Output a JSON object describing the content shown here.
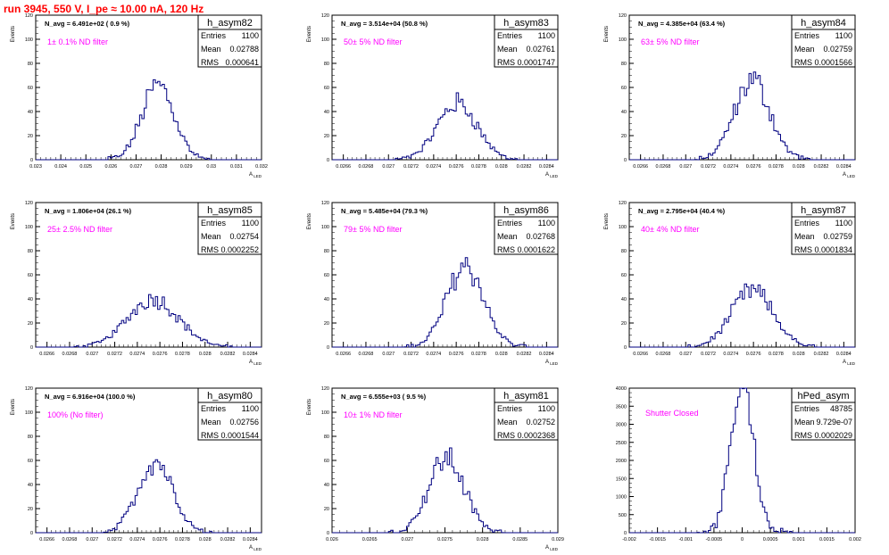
{
  "page": {
    "title": "run 3945,   550 V, I_pe ≈ 10.00 nA, 120 Hz"
  },
  "colors": {
    "title": "#ff0000",
    "annotation": "#ff00ff",
    "histogram": "#000080"
  },
  "chart_data": [
    {
      "type": "histogram",
      "name": "h_asym82",
      "stats": {
        "entries_label": "Entries",
        "entries": "1100",
        "mean_label": "Mean",
        "mean": "0.02788",
        "rms_label": "RMS",
        "rms": "0.000641"
      },
      "navg_text": "N_avg = 6.491e+02 ( 0.9 %)",
      "filter_text": "1± 0.1% ND filter",
      "ylabel": "Events",
      "xlabel": "A_LED",
      "xlim": [
        0.023,
        0.032
      ],
      "ylim": [
        0,
        120
      ],
      "xticks": [
        "0.023",
        "0.024",
        "0.025",
        "0.026",
        "0.027",
        "0.028",
        "0.029",
        "0.03",
        "0.031",
        "0.032"
      ],
      "yticks": [
        "0",
        "20",
        "40",
        "60",
        "80",
        "100",
        "120"
      ],
      "peak_x": 0.02788,
      "peak_y": 62,
      "sigma": 0.00064
    },
    {
      "type": "histogram",
      "name": "h_asym83",
      "stats": {
        "entries_label": "Entries",
        "entries": "1100",
        "mean_label": "Mean",
        "mean": "0.02761",
        "rms_label": "RMS",
        "rms": "0.0001747"
      },
      "navg_text": "N_avg = 3.514e+04 (50.8 %)",
      "filter_text": "50± 5% ND filter",
      "ylabel": "Events",
      "xlabel": "A_LED",
      "xlim": [
        0.0265,
        0.0285
      ],
      "ylim": [
        0,
        120
      ],
      "xticks": [
        "0.0266",
        "0.0268",
        "0.027",
        "0.0272",
        "0.0274",
        "0.0276",
        "0.0278",
        "0.028",
        "0.0282",
        "0.0284"
      ],
      "yticks": [
        "0",
        "20",
        "40",
        "60",
        "80",
        "100",
        "120"
      ],
      "peak_x": 0.02761,
      "peak_y": 47,
      "sigma": 0.000175
    },
    {
      "type": "histogram",
      "name": "h_asym84",
      "stats": {
        "entries_label": "Entries",
        "entries": "1100",
        "mean_label": "Mean",
        "mean": "0.02759",
        "rms_label": "RMS",
        "rms": "0.0001566"
      },
      "navg_text": "N_avg = 4.385e+04 (63.4 %)",
      "filter_text": "63± 5% ND filter",
      "ylabel": "Events",
      "xlabel": "A_LED",
      "xlim": [
        0.0265,
        0.0285
      ],
      "ylim": [
        0,
        120
      ],
      "xticks": [
        "0.0266",
        "0.0268",
        "0.027",
        "0.0272",
        "0.0274",
        "0.0276",
        "0.0278",
        "0.028",
        "0.0282",
        "0.0284"
      ],
      "yticks": [
        "0",
        "20",
        "40",
        "60",
        "80",
        "100",
        "120"
      ],
      "peak_x": 0.02759,
      "peak_y": 66,
      "sigma": 0.000157
    },
    {
      "type": "histogram",
      "name": "h_asym85",
      "stats": {
        "entries_label": "Entries",
        "entries": "1100",
        "mean_label": "Mean",
        "mean": "0.02754",
        "rms_label": "RMS",
        "rms": "0.0002252"
      },
      "navg_text": "N_avg = 1.806e+04 (26.1 %)",
      "filter_text": "25± 2.5% ND filter",
      "ylabel": "Events",
      "xlabel": "A_LED",
      "xlim": [
        0.0265,
        0.0285
      ],
      "ylim": [
        0,
        120
      ],
      "xticks": [
        "0.0266",
        "0.0268",
        "0.027",
        "0.0272",
        "0.0274",
        "0.0276",
        "0.0278",
        "0.028",
        "0.0282",
        "0.0284"
      ],
      "yticks": [
        "0",
        "20",
        "40",
        "60",
        "80",
        "100",
        "120"
      ],
      "peak_x": 0.02754,
      "peak_y": 40,
      "sigma": 0.000225
    },
    {
      "type": "histogram",
      "name": "h_asym86",
      "stats": {
        "entries_label": "Entries",
        "entries": "1100",
        "mean_label": "Mean",
        "mean": "0.02768",
        "rms_label": "RMS",
        "rms": "0.0001622"
      },
      "navg_text": "N_avg = 5.485e+04 (79.3 %)",
      "filter_text": "79± 5% ND filter",
      "ylabel": "Events",
      "xlabel": "A_LED",
      "xlim": [
        0.0265,
        0.0285
      ],
      "ylim": [
        0,
        120
      ],
      "xticks": [
        "0.0266",
        "0.0268",
        "0.027",
        "0.0272",
        "0.0274",
        "0.0276",
        "0.0278",
        "0.028",
        "0.0282",
        "0.0284"
      ],
      "yticks": [
        "0",
        "20",
        "40",
        "60",
        "80",
        "100",
        "120"
      ],
      "peak_x": 0.02768,
      "peak_y": 68,
      "sigma": 0.000162
    },
    {
      "type": "histogram",
      "name": "h_asym87",
      "stats": {
        "entries_label": "Entries",
        "entries": "1100",
        "mean_label": "Mean",
        "mean": "0.02759",
        "rms_label": "RMS",
        "rms": "0.0001834"
      },
      "navg_text": "N_avg = 2.795e+04 (40.4 %)",
      "filter_text": "40± 4% ND filter",
      "ylabel": "Events",
      "xlabel": "A_LED",
      "xlim": [
        0.0265,
        0.0285
      ],
      "ylim": [
        0,
        120
      ],
      "xticks": [
        "0.0266",
        "0.0268",
        "0.027",
        "0.0272",
        "0.0274",
        "0.0276",
        "0.0278",
        "0.028",
        "0.0282",
        "0.0284"
      ],
      "yticks": [
        "0",
        "20",
        "40",
        "60",
        "80",
        "100",
        "120"
      ],
      "peak_x": 0.02759,
      "peak_y": 47,
      "sigma": 0.000183
    },
    {
      "type": "histogram",
      "name": "h_asym80",
      "stats": {
        "entries_label": "Entries",
        "entries": "1100",
        "mean_label": "Mean",
        "mean": "0.02756",
        "rms_label": "RMS",
        "rms": "0.0001544"
      },
      "navg_text": "N_avg = 6.916e+04 (100.0 %)",
      "filter_text": "100% (No filter)",
      "ylabel": "Events",
      "xlabel": "A_LED",
      "xlim": [
        0.0265,
        0.0285
      ],
      "ylim": [
        0,
        120
      ],
      "xticks": [
        "0.0266",
        "0.0268",
        "0.027",
        "0.0272",
        "0.0274",
        "0.0276",
        "0.0278",
        "0.028",
        "0.0282",
        "0.0284"
      ],
      "yticks": [
        "0",
        "20",
        "40",
        "60",
        "80",
        "100",
        "120"
      ],
      "peak_x": 0.02756,
      "peak_y": 60,
      "sigma": 0.000154
    },
    {
      "type": "histogram",
      "name": "h_asym81",
      "stats": {
        "entries_label": "Entries",
        "entries": "1100",
        "mean_label": "Mean",
        "mean": "0.02752",
        "rms_label": "RMS",
        "rms": "0.0002368"
      },
      "navg_text": "N_avg = 6.555e+03 ( 9.5 %)",
      "filter_text": "10± 1% ND filter",
      "ylabel": "Events",
      "xlabel": "A_LED",
      "xlim": [
        0.026,
        0.029
      ],
      "ylim": [
        0,
        120
      ],
      "xticks": [
        "0.026",
        "0.0265",
        "0.027",
        "0.0275",
        "0.028",
        "0.0285",
        "0.029"
      ],
      "yticks": [
        "0",
        "20",
        "40",
        "60",
        "80",
        "100",
        "120"
      ],
      "peak_x": 0.02752,
      "peak_y": 62,
      "sigma": 0.000237
    },
    {
      "type": "histogram",
      "name": "hPed_asym",
      "stats": {
        "entries_label": "Entries",
        "entries": "48785",
        "mean_label": "Mean",
        "mean": "9.729e-07",
        "rms_label": "RMS",
        "rms": "0.0002029"
      },
      "navg_text": "",
      "filter_text": "Shutter Closed",
      "ylabel": "",
      "xlabel": "",
      "xlim": [
        -0.002,
        0.002
      ],
      "ylim": [
        0,
        4000
      ],
      "xticks": [
        "-0.002",
        "-0.0015",
        "-0.001",
        "-0.0005",
        "0",
        "0.0005",
        "0.001",
        "0.0015",
        "0.002"
      ],
      "yticks": [
        "0",
        "500",
        "1000",
        "1500",
        "2000",
        "2500",
        "3000",
        "3500",
        "4000"
      ],
      "peak_x": 0.0,
      "peak_y": 3880,
      "sigma": 0.000203
    }
  ]
}
